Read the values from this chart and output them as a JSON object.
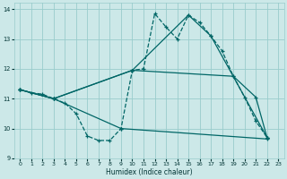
{
  "xlabel": "Humidex (Indice chaleur)",
  "bg_color": "#cce8e8",
  "grid_color": "#99cccc",
  "line_color": "#006666",
  "xlim": [
    -0.5,
    23.5
  ],
  "ylim": [
    9,
    14.2
  ],
  "yticks": [
    9,
    10,
    11,
    12,
    13,
    14
  ],
  "xticks": [
    0,
    1,
    2,
    3,
    4,
    5,
    6,
    7,
    8,
    9,
    10,
    11,
    12,
    13,
    14,
    15,
    16,
    17,
    18,
    19,
    20,
    21,
    22,
    23
  ],
  "series": [
    {
      "style": "dashed",
      "x": [
        0,
        1,
        2,
        3,
        4,
        5,
        6,
        7,
        8,
        9,
        10,
        11,
        12,
        13,
        14,
        15,
        16,
        17,
        18,
        19,
        20,
        21,
        22
      ],
      "y": [
        11.3,
        11.2,
        11.15,
        11.0,
        10.85,
        10.5,
        9.75,
        9.6,
        9.6,
        10.0,
        11.95,
        12.0,
        13.85,
        13.4,
        13.0,
        13.8,
        13.55,
        13.1,
        12.6,
        11.75,
        11.05,
        10.25,
        9.7
      ]
    },
    {
      "style": "solid",
      "x": [
        0,
        3,
        10,
        15,
        17,
        22
      ],
      "y": [
        11.3,
        11.0,
        11.95,
        13.8,
        13.1,
        9.7
      ]
    },
    {
      "style": "solid",
      "x": [
        0,
        3,
        10,
        19,
        21,
        22
      ],
      "y": [
        11.3,
        11.0,
        11.95,
        11.75,
        11.05,
        9.7
      ]
    },
    {
      "style": "solid",
      "x": [
        0,
        3,
        9,
        22
      ],
      "y": [
        11.3,
        11.0,
        10.0,
        9.65
      ]
    }
  ]
}
